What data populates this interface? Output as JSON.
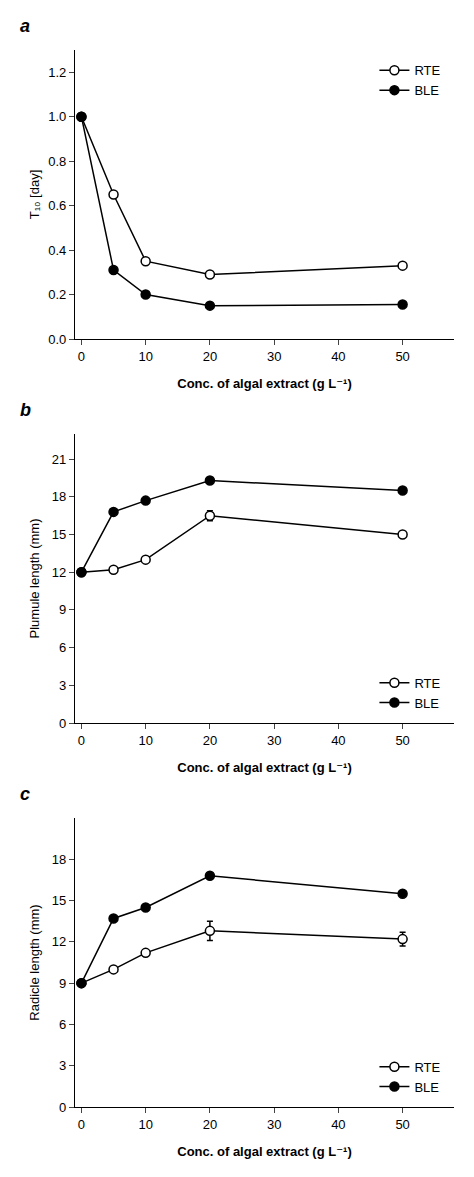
{
  "chart_data": [
    {
      "type": "line",
      "title": "a",
      "xlabel": "Conc. of algal extract (g L⁻¹)",
      "ylabel": "T₁₀ [day]",
      "x": [
        0,
        5,
        10,
        20,
        50
      ],
      "series": [
        {
          "name": "RTE",
          "color": "#000000",
          "marker": "open circle",
          "line_style": "solid",
          "values": [
            1.0,
            0.65,
            0.35,
            0.29,
            0.33
          ],
          "errors": [
            0,
            0,
            0,
            0,
            0
          ]
        },
        {
          "name": "BLE",
          "color": "#000000",
          "marker": "filled circle",
          "line_style": "solid",
          "values": [
            1.0,
            0.31,
            0.2,
            0.15,
            0.155
          ],
          "errors": [
            0,
            0,
            0,
            0,
            0
          ]
        }
      ],
      "xlim": [
        -1,
        58
      ],
      "xticks": [
        0,
        10,
        20,
        30,
        40,
        50
      ],
      "ylim": [
        0.0,
        1.3
      ],
      "yticks": [
        {
          "value": 0.0,
          "label": "0.0"
        },
        0.2,
        0.4,
        0.6,
        0.8,
        {
          "value": 1.0,
          "label": "1.0"
        },
        1.2
      ],
      "grid": false,
      "legend": "upper right"
    },
    {
      "type": "line",
      "title": "b",
      "xlabel": "Conc. of algal extract (g L⁻¹)",
      "ylabel": "Plumule length (mm)",
      "x": [
        0,
        5,
        10,
        20,
        50
      ],
      "series": [
        {
          "name": "RTE",
          "color": "#000000",
          "marker": "open circle",
          "line_style": "solid",
          "values": [
            12.0,
            12.2,
            13.0,
            16.5,
            15.0
          ],
          "errors": [
            0,
            0,
            0,
            0.4,
            0
          ]
        },
        {
          "name": "BLE",
          "color": "#000000",
          "marker": "filled circle",
          "line_style": "solid",
          "values": [
            12.0,
            16.8,
            17.7,
            19.3,
            18.5
          ],
          "errors": [
            0,
            0,
            0,
            0,
            0
          ]
        }
      ],
      "xlim": [
        -1,
        58
      ],
      "xticks": [
        0,
        10,
        20,
        30,
        40,
        50
      ],
      "ylim": [
        0,
        23
      ],
      "yticks": [
        0,
        3,
        6,
        9,
        12,
        15,
        18,
        21
      ],
      "grid": false,
      "legend": "lower right"
    },
    {
      "type": "line",
      "title": "c",
      "xlabel": "Conc. of algal extract (g L⁻¹)",
      "ylabel": "Radicle length (mm)",
      "x": [
        0,
        5,
        10,
        20,
        50
      ],
      "series": [
        {
          "name": "RTE",
          "color": "#000000",
          "marker": "open circle",
          "line_style": "solid",
          "values": [
            9.0,
            10.0,
            11.2,
            12.8,
            12.2
          ],
          "errors": [
            0,
            0,
            0,
            0.7,
            0.5
          ]
        },
        {
          "name": "BLE",
          "color": "#000000",
          "marker": "filled circle",
          "line_style": "solid",
          "values": [
            9.0,
            13.7,
            14.5,
            16.8,
            15.5
          ],
          "errors": [
            0,
            0,
            0,
            0,
            0
          ]
        }
      ],
      "xlim": [
        -1,
        58
      ],
      "xticks": [
        0,
        10,
        20,
        30,
        40,
        50
      ],
      "ylim": [
        0,
        21
      ],
      "yticks": [
        0,
        3,
        6,
        9,
        12,
        15,
        18
      ],
      "grid": false,
      "legend": "lower right"
    }
  ]
}
